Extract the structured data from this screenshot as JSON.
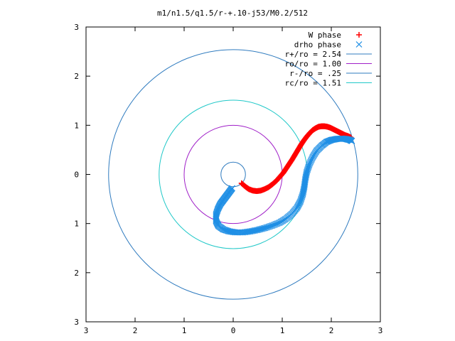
{
  "chart_data": {
    "type": "scatter",
    "title": "m1/n1.5/q1.5/r-+.10-j53/M0.2/512",
    "xlabel": "",
    "ylabel": "",
    "xlim": [
      -3,
      3
    ],
    "ylim": [
      -3,
      3
    ],
    "xticks": [
      -3,
      -2,
      -1,
      0,
      1,
      2,
      3
    ],
    "yticks": [
      -3,
      -2,
      -1,
      0,
      1,
      2,
      3
    ],
    "xtick_labels": [
      "3",
      "2",
      "1",
      "0",
      "1",
      "2",
      "3"
    ],
    "ytick_labels": [
      "3",
      "2",
      "1",
      "0",
      "1",
      "2",
      "3"
    ],
    "grid": false,
    "legend_position": "top-right",
    "series": [
      {
        "name": "W phase",
        "kind": "points",
        "marker": "plus",
        "color": "#ff0000",
        "x": [
          0.17,
          0.25,
          0.32,
          0.4,
          0.48,
          0.56,
          0.64,
          0.72,
          0.8,
          0.88,
          0.95,
          1.02,
          1.08,
          1.14,
          1.2,
          1.26,
          1.32,
          1.38,
          1.44,
          1.5,
          1.56,
          1.62,
          1.68,
          1.74,
          1.8,
          1.86,
          1.92,
          1.98,
          2.04,
          2.1,
          2.16,
          2.22,
          2.28,
          2.34,
          2.4
        ],
        "y": [
          -0.18,
          -0.25,
          -0.3,
          -0.33,
          -0.34,
          -0.33,
          -0.3,
          -0.26,
          -0.2,
          -0.13,
          -0.05,
          0.03,
          0.12,
          0.21,
          0.3,
          0.4,
          0.5,
          0.6,
          0.69,
          0.77,
          0.84,
          0.9,
          0.94,
          0.97,
          0.98,
          0.98,
          0.97,
          0.95,
          0.92,
          0.89,
          0.86,
          0.83,
          0.8,
          0.78,
          0.75
        ]
      },
      {
        "name": "drho phase",
        "kind": "points",
        "marker": "cross",
        "color": "#1f8fe5",
        "x": [
          -0.02,
          -0.08,
          -0.14,
          -0.2,
          -0.26,
          -0.31,
          -0.35,
          -0.35,
          -0.3,
          -0.2,
          -0.08,
          0.05,
          0.2,
          0.35,
          0.5,
          0.65,
          0.8,
          0.95,
          1.08,
          1.2,
          1.3,
          1.37,
          1.42,
          1.45,
          1.47,
          1.5,
          1.55,
          1.62,
          1.7,
          1.8,
          1.9,
          2.0,
          2.1,
          2.2,
          2.3,
          2.38,
          2.42
        ],
        "y": [
          -0.28,
          -0.36,
          -0.44,
          -0.52,
          -0.6,
          -0.7,
          -0.82,
          -0.95,
          -1.05,
          -1.12,
          -1.16,
          -1.18,
          -1.18,
          -1.16,
          -1.13,
          -1.09,
          -1.04,
          -0.98,
          -0.9,
          -0.8,
          -0.68,
          -0.55,
          -0.4,
          -0.25,
          -0.1,
          0.05,
          0.2,
          0.35,
          0.48,
          0.58,
          0.66,
          0.7,
          0.72,
          0.73,
          0.72,
          0.7,
          0.68
        ]
      },
      {
        "name": "r+/ro = 2.54",
        "kind": "circle",
        "r": 2.54,
        "color": "#2f7bbf"
      },
      {
        "name": "ro/ro = 1.00",
        "kind": "circle",
        "r": 1.0,
        "color": "#a020c8"
      },
      {
        "name": "r-/ro = .25",
        "kind": "circle",
        "r": 0.25,
        "color": "#2f7bbf"
      },
      {
        "name": "rc/ro = 1.51",
        "kind": "circle",
        "r": 1.51,
        "color": "#20c8c8"
      }
    ]
  }
}
